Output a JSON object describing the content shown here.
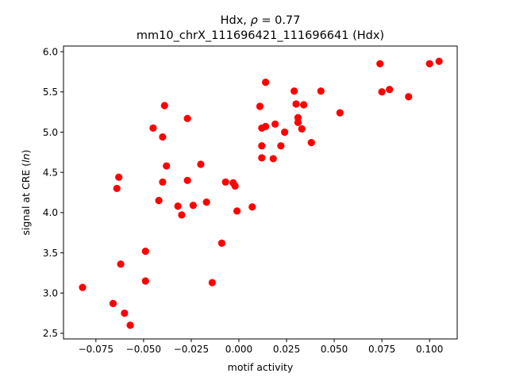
{
  "chart_data": {
    "type": "scatter",
    "title_text": "Hdx, ",
    "title_symbol": "ρ",
    "title_eq": " = 0.77",
    "subtitle": "mm10_chrX_111696421_111696641 (Hdx)",
    "xlabel": "motif activity",
    "ylabel_prefix": "signal at CRE (",
    "ylabel_italic": "ln",
    "ylabel_suffix": ")",
    "xlim": [
      -0.092,
      0.1145
    ],
    "ylim": [
      2.43,
      6.07
    ],
    "xticks": [
      -0.075,
      -0.05,
      -0.025,
      0.0,
      0.025,
      0.05,
      0.075,
      0.1
    ],
    "xtick_labels": [
      "−0.075",
      "−0.050",
      "−0.025",
      "0.000",
      "0.025",
      "0.050",
      "0.075",
      "0.100"
    ],
    "yticks": [
      2.5,
      3.0,
      3.5,
      4.0,
      4.5,
      5.0,
      5.5,
      6.0
    ],
    "ytick_labels": [
      "2.5",
      "3.0",
      "3.5",
      "4.0",
      "4.5",
      "5.0",
      "5.5",
      "6.0"
    ],
    "marker_color": "#ff0000",
    "grid": false,
    "points": [
      {
        "x": -0.082,
        "y": 3.07
      },
      {
        "x": -0.066,
        "y": 2.87
      },
      {
        "x": -0.064,
        "y": 4.3
      },
      {
        "x": -0.063,
        "y": 4.44
      },
      {
        "x": -0.062,
        "y": 3.36
      },
      {
        "x": -0.06,
        "y": 2.75
      },
      {
        "x": -0.057,
        "y": 2.6
      },
      {
        "x": -0.049,
        "y": 3.52
      },
      {
        "x": -0.049,
        "y": 3.15
      },
      {
        "x": -0.045,
        "y": 5.05
      },
      {
        "x": -0.042,
        "y": 4.15
      },
      {
        "x": -0.04,
        "y": 4.94
      },
      {
        "x": -0.04,
        "y": 4.38
      },
      {
        "x": -0.039,
        "y": 5.33
      },
      {
        "x": -0.038,
        "y": 4.58
      },
      {
        "x": -0.032,
        "y": 4.08
      },
      {
        "x": -0.03,
        "y": 3.97
      },
      {
        "x": -0.027,
        "y": 5.17
      },
      {
        "x": -0.027,
        "y": 4.4
      },
      {
        "x": -0.024,
        "y": 4.09
      },
      {
        "x": -0.02,
        "y": 4.6
      },
      {
        "x": -0.017,
        "y": 4.13
      },
      {
        "x": -0.014,
        "y": 3.13
      },
      {
        "x": -0.009,
        "y": 3.62
      },
      {
        "x": -0.007,
        "y": 4.38
      },
      {
        "x": -0.003,
        "y": 4.37
      },
      {
        "x": -0.002,
        "y": 4.33
      },
      {
        "x": -0.001,
        "y": 4.02
      },
      {
        "x": 0.007,
        "y": 4.07
      },
      {
        "x": 0.011,
        "y": 5.32
      },
      {
        "x": 0.012,
        "y": 5.05
      },
      {
        "x": 0.012,
        "y": 4.83
      },
      {
        "x": 0.012,
        "y": 4.68
      },
      {
        "x": 0.014,
        "y": 5.62
      },
      {
        "x": 0.014,
        "y": 5.07
      },
      {
        "x": 0.018,
        "y": 4.67
      },
      {
        "x": 0.019,
        "y": 5.1
      },
      {
        "x": 0.022,
        "y": 4.83
      },
      {
        "x": 0.024,
        "y": 5.0
      },
      {
        "x": 0.029,
        "y": 5.51
      },
      {
        "x": 0.03,
        "y": 5.35
      },
      {
        "x": 0.031,
        "y": 5.18
      },
      {
        "x": 0.031,
        "y": 5.12
      },
      {
        "x": 0.033,
        "y": 5.04
      },
      {
        "x": 0.034,
        "y": 5.34
      },
      {
        "x": 0.038,
        "y": 4.87
      },
      {
        "x": 0.043,
        "y": 5.51
      },
      {
        "x": 0.053,
        "y": 5.24
      },
      {
        "x": 0.074,
        "y": 5.85
      },
      {
        "x": 0.075,
        "y": 5.5
      },
      {
        "x": 0.079,
        "y": 5.53
      },
      {
        "x": 0.089,
        "y": 5.44
      },
      {
        "x": 0.1,
        "y": 5.85
      },
      {
        "x": 0.105,
        "y": 5.88
      }
    ]
  }
}
